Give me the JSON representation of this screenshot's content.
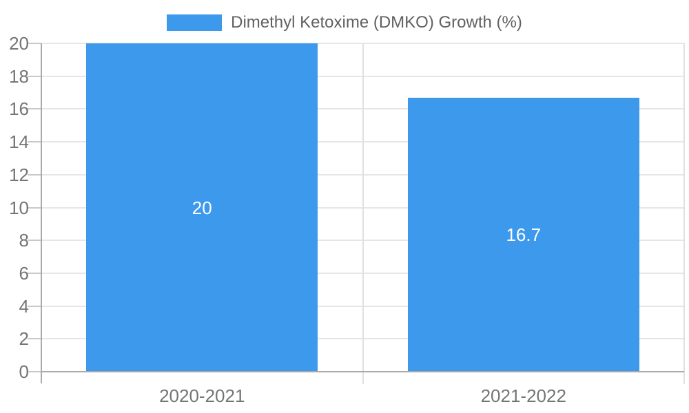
{
  "chart_data": {
    "type": "bar",
    "title": "Dimethyl Ketoxime (DMKO) Growth (%)",
    "categories": [
      "2020-2021",
      "2021-2022"
    ],
    "series": [
      {
        "name": "Dimethyl Ketoxime (DMKO) Growth (%)",
        "values": [
          20,
          16.7
        ],
        "value_labels": [
          "20",
          "16.7"
        ]
      }
    ],
    "xlabel": "",
    "ylabel": "",
    "ylim": [
      0,
      20
    ],
    "ytick_step": 2,
    "ytick_labels": [
      "0",
      "2",
      "4",
      "6",
      "8",
      "10",
      "12",
      "14",
      "16",
      "18",
      "20"
    ],
    "grid": true,
    "legend_position": "top-center"
  },
  "legend": {
    "label": "Dimethyl Ketoxime (DMKO) Growth (%)"
  },
  "colors": {
    "bar": "#3c99ec",
    "gridline_h": "#e6e6e6",
    "gridline_v": "#e0e0e0",
    "axis_line": "#a9a9a9",
    "tick": "#c9c9c9",
    "axis_label": "#757575",
    "legend_text": "#616161",
    "value_label": "#ffffff",
    "background": "#ffffff"
  }
}
